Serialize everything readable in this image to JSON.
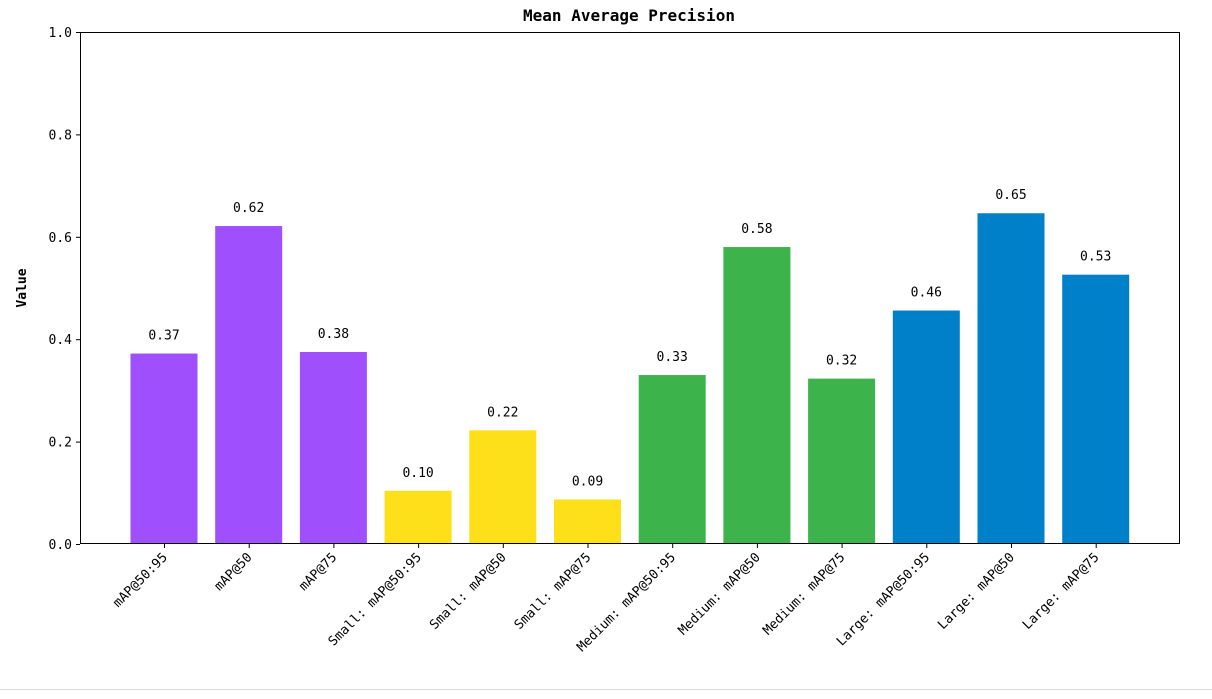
{
  "chart_data": {
    "type": "bar",
    "title": "Mean Average Precision",
    "xlabel": "",
    "ylabel": "Value",
    "ylim": [
      0,
      1.0
    ],
    "yticks": [
      "0.0",
      "0.2",
      "0.4",
      "0.6",
      "0.8",
      "1.0"
    ],
    "grid": false,
    "legend": "none",
    "categories": [
      "mAP@50:95",
      "mAP@50",
      "mAP@75",
      "Small: mAP@50:95",
      "Small: mAP@50",
      "Small: mAP@75",
      "Medium: mAP@50:95",
      "Medium: mAP@50",
      "Medium: mAP@75",
      "Large: mAP@50:95",
      "Large: mAP@50",
      "Large: mAP@75"
    ],
    "values": [
      0.372,
      0.621,
      0.375,
      0.104,
      0.222,
      0.087,
      0.33,
      0.58,
      0.323,
      0.456,
      0.646,
      0.526
    ],
    "data_labels": [
      "0.37",
      "0.62",
      "0.38",
      "0.10",
      "0.22",
      "0.09",
      "0.33",
      "0.58",
      "0.32",
      "0.46",
      "0.65",
      "0.53"
    ],
    "colors": [
      "#a04ffd",
      "#a04ffd",
      "#a04ffd",
      "#fee01a",
      "#fee01a",
      "#fee01a",
      "#3cb44b",
      "#3cb44b",
      "#3cb44b",
      "#0080c8",
      "#0080c8",
      "#0080c8"
    ]
  }
}
